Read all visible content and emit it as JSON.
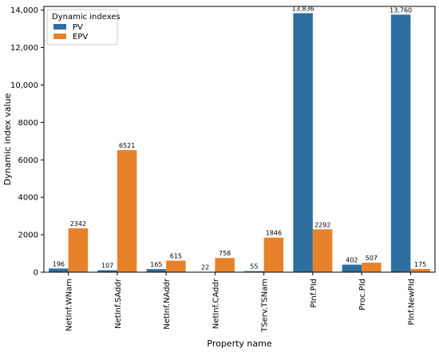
{
  "chart_data": {
    "type": "bar",
    "xlabel": "Property name",
    "ylabel": "Dynamic index value",
    "ylim": [
      0,
      14200
    ],
    "yticks": [
      0,
      2000,
      4000,
      6000,
      8000,
      10000,
      12000,
      14000
    ],
    "ytick_labels": [
      "0",
      "2000",
      "4000",
      "6000",
      "8000",
      "10,000",
      "12,000",
      "14,000"
    ],
    "categories": [
      "NetInf.WNam",
      "NetInf.SAddr",
      "NetInf.NAddr",
      "NetInf.CAddr",
      "TServ.TSNam",
      "PInf.PId",
      "Proc.PId",
      "PInf.NewPId"
    ],
    "series": [
      {
        "name": "PV",
        "color": "#2f6f9f",
        "values": [
          196,
          107,
          165,
          22,
          55,
          13836,
          402,
          13760
        ],
        "labels": [
          "196",
          "107",
          "165",
          "22",
          "55",
          "13,836",
          "402",
          "13,760"
        ]
      },
      {
        "name": "EPV",
        "color": "#e8822a",
        "values": [
          2342,
          6521,
          615,
          758,
          1846,
          2292,
          507,
          175
        ],
        "labels": [
          "2342",
          "6521",
          "615",
          "758",
          "1846",
          "2292",
          "507",
          "175"
        ]
      }
    ],
    "legend": {
      "title": "Dynamic indexes",
      "placement": "top-left"
    },
    "grid": false
  }
}
